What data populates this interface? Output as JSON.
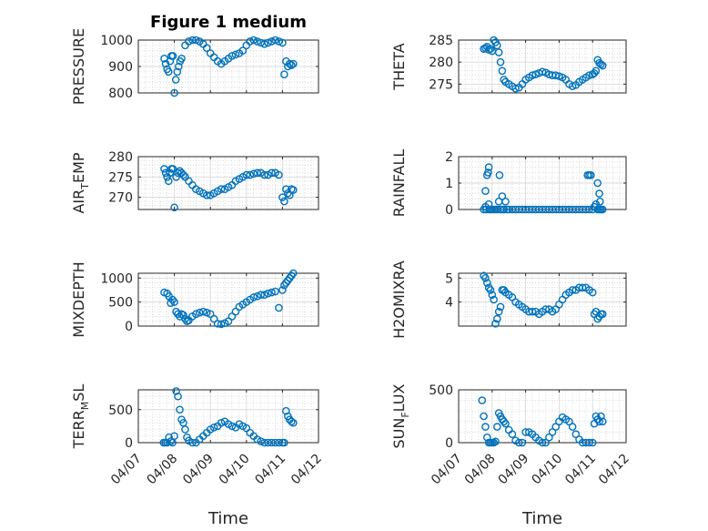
{
  "figure": {
    "title": "Figure 1 medium",
    "marker_color": "#0072BD"
  },
  "chart_data": [
    {
      "type": "scatter",
      "ylabel": "PRESSURE",
      "xlabel": "",
      "ylim": [
        800,
        1000
      ],
      "yticks": [
        800,
        900,
        1000
      ],
      "ytick_labels": [
        "800",
        "900",
        "1000"
      ],
      "xlim": [
        0,
        5
      ],
      "xticks": [
        0,
        1,
        2,
        3,
        4,
        5
      ],
      "xtick_labels": [
        "04/07",
        "04/08",
        "04/09",
        "04/10",
        "04/11",
        "04/12"
      ],
      "grid": true,
      "series": [
        {
          "x": [
            0.72,
            0.76,
            0.8,
            0.84,
            0.88,
            0.92,
            0.96,
            1.0,
            1.04,
            1.08,
            1.12,
            1.16,
            1.2,
            1.3,
            1.4,
            1.5,
            1.6,
            1.7,
            1.8,
            1.9,
            2.0,
            2.1,
            2.2,
            2.3,
            2.4,
            2.5,
            2.6,
            2.7,
            2.8,
            2.9,
            3.0,
            3.1,
            3.2,
            3.3,
            3.4,
            3.5,
            3.6,
            3.7,
            3.8,
            3.9,
            4.0,
            4.05,
            4.1,
            4.15,
            4.2,
            4.25,
            4.3
          ],
          "y": [
            930,
            910,
            890,
            880,
            920,
            940,
            940,
            800,
            850,
            880,
            900,
            920,
            930,
            980,
            995,
            1000,
            1000,
            995,
            985,
            970,
            950,
            935,
            920,
            910,
            920,
            930,
            940,
            945,
            950,
            960,
            980,
            995,
            1000,
            995,
            990,
            985,
            990,
            995,
            1000,
            995,
            990,
            870,
            920,
            900,
            910,
            905,
            910
          ]
        }
      ]
    },
    {
      "type": "scatter",
      "ylabel": "THETA",
      "xlabel": "",
      "ylim": [
        273,
        285
      ],
      "yticks": [
        275,
        280,
        285
      ],
      "ytick_labels": [
        "275",
        "280",
        "285"
      ],
      "xlim": [
        0,
        5
      ],
      "xticks": [
        0,
        1,
        2,
        3,
        4,
        5
      ],
      "xtick_labels": [
        "04/07",
        "04/08",
        "04/09",
        "04/10",
        "04/11",
        "04/12"
      ],
      "grid": true,
      "series": [
        {
          "x": [
            0.75,
            0.8,
            0.85,
            0.9,
            0.95,
            1.0,
            1.05,
            1.1,
            1.15,
            1.2,
            1.25,
            1.3,
            1.35,
            1.4,
            1.5,
            1.6,
            1.7,
            1.8,
            1.9,
            2.0,
            2.1,
            2.2,
            2.3,
            2.4,
            2.5,
            2.6,
            2.7,
            2.8,
            2.9,
            3.0,
            3.1,
            3.2,
            3.3,
            3.4,
            3.5,
            3.6,
            3.7,
            3.8,
            3.9,
            4.0,
            4.05,
            4.1,
            4.15,
            4.2,
            4.25,
            4.3
          ],
          "y": [
            283,
            283.2,
            283.5,
            282.8,
            283,
            282.5,
            285,
            284.5,
            283.8,
            282.2,
            280,
            278,
            276,
            275.5,
            275,
            274.5,
            274,
            274.2,
            275,
            276,
            276.5,
            277,
            277.2,
            277.5,
            277.8,
            277.6,
            277.2,
            277,
            277,
            276.8,
            276.5,
            276,
            275,
            274.5,
            274.8,
            275.5,
            276,
            276.5,
            277,
            277.2,
            277.5,
            278,
            280.5,
            279.8,
            279.5,
            279.2
          ]
        }
      ]
    },
    {
      "type": "scatter",
      "ylabel": "AIR_TEMP",
      "ylabel_main": "AIR",
      "ylabel_sub": "T",
      "ylabel_rest": "EMP",
      "xlabel": "",
      "ylim": [
        267,
        280
      ],
      "yticks": [
        270,
        275,
        280
      ],
      "ytick_labels": [
        "270",
        "275",
        "280"
      ],
      "xlim": [
        0,
        5
      ],
      "xticks": [
        0,
        1,
        2,
        3,
        4,
        5
      ],
      "xtick_labels": [
        "04/07",
        "04/08",
        "04/09",
        "04/10",
        "04/11",
        "04/12"
      ],
      "grid": true,
      "series": [
        {
          "x": [
            0.72,
            0.76,
            0.8,
            0.84,
            0.88,
            0.92,
            0.96,
            1.0,
            1.05,
            1.1,
            1.15,
            1.2,
            1.25,
            1.3,
            1.4,
            1.5,
            1.6,
            1.7,
            1.8,
            1.9,
            2.0,
            2.1,
            2.2,
            2.3,
            2.4,
            2.5,
            2.6,
            2.7,
            2.8,
            2.9,
            3.0,
            3.1,
            3.2,
            3.3,
            3.4,
            3.5,
            3.6,
            3.7,
            3.8,
            3.9,
            4.0,
            4.05,
            4.1,
            4.15,
            4.2,
            4.25,
            4.3
          ],
          "y": [
            277,
            276,
            275,
            274,
            276,
            277,
            277,
            267.5,
            275,
            276,
            276.5,
            276,
            275.5,
            275,
            274,
            273,
            272,
            271.5,
            271,
            270.5,
            270.5,
            271,
            271.5,
            272,
            272,
            272.5,
            273,
            274,
            274.5,
            275,
            275.5,
            275.5,
            275.8,
            276,
            276,
            275.5,
            275.5,
            276,
            276,
            275.5,
            270,
            269,
            272,
            271,
            270.5,
            272,
            271.8
          ]
        }
      ]
    },
    {
      "type": "scatter",
      "ylabel": "RAINFALL",
      "xlabel": "",
      "ylim": [
        0,
        2
      ],
      "yticks": [
        0,
        1,
        2
      ],
      "ytick_labels": [
        "0",
        "1",
        "2"
      ],
      "xlim": [
        0,
        5
      ],
      "xticks": [
        0,
        1,
        2,
        3,
        4,
        5
      ],
      "xtick_labels": [
        "04/07",
        "04/08",
        "04/09",
        "04/10",
        "04/11",
        "04/12"
      ],
      "grid": true,
      "series": [
        {
          "x": [
            0.75,
            0.8,
            0.85,
            0.9,
            0.95,
            1.0,
            1.05,
            1.1,
            1.15,
            1.2,
            1.25,
            1.3,
            1.35,
            1.4,
            1.5,
            1.6,
            1.7,
            1.8,
            1.9,
            2.0,
            2.1,
            2.2,
            2.3,
            2.4,
            2.5,
            2.6,
            2.7,
            2.8,
            2.9,
            3.0,
            3.1,
            3.2,
            3.3,
            3.4,
            3.5,
            3.6,
            3.7,
            3.8,
            3.9,
            4.0,
            4.05,
            4.1,
            4.15,
            4.2,
            4.25,
            4.3,
            0.82,
            0.88,
            0.92,
            1.22,
            1.26,
            1.35,
            1.45,
            3.85,
            3.9,
            3.95,
            4.15,
            4.2,
            4.22,
            4.25,
            0.8,
            0.9
          ],
          "y": [
            0,
            0.7,
            1.3,
            1.6,
            0,
            0,
            0,
            0,
            0,
            0.3,
            0,
            0.5,
            0,
            0.3,
            0,
            0,
            0,
            0,
            0,
            0,
            0,
            0,
            0,
            0,
            0,
            0,
            0,
            0,
            0,
            0,
            0,
            0,
            0,
            0,
            0,
            0,
            0,
            0,
            0,
            0,
            0.1,
            0.2,
            0,
            0,
            0,
            0,
            0,
            1.4,
            0,
            1.3,
            0,
            0,
            0,
            1.3,
            1.3,
            1.3,
            1.0,
            0.6,
            0.3,
            0,
            0.1,
            0.2
          ]
        }
      ]
    },
    {
      "type": "scatter",
      "ylabel": "MIXDEPTH",
      "xlabel": "",
      "ylim": [
        0,
        1100
      ],
      "yticks": [
        0,
        500,
        1000
      ],
      "ytick_labels": [
        "0",
        "500",
        "1000"
      ],
      "xlim": [
        0,
        5
      ],
      "xticks": [
        0,
        1,
        2,
        3,
        4,
        5
      ],
      "xtick_labels": [
        "04/07",
        "04/08",
        "04/09",
        "04/10",
        "04/11",
        "04/12"
      ],
      "grid": true,
      "series": [
        {
          "x": [
            0.72,
            0.8,
            0.85,
            0.9,
            0.95,
            1.0,
            1.05,
            1.1,
            1.15,
            1.2,
            1.25,
            1.3,
            1.35,
            1.4,
            1.5,
            1.6,
            1.7,
            1.8,
            1.9,
            2.0,
            2.1,
            2.2,
            2.3,
            2.4,
            2.5,
            2.6,
            2.7,
            2.8,
            2.9,
            3.0,
            3.1,
            3.2,
            3.3,
            3.4,
            3.5,
            3.6,
            3.7,
            3.8,
            3.9,
            4.0,
            4.05,
            4.1,
            4.15,
            4.2,
            4.25,
            4.3
          ],
          "y": [
            700,
            680,
            620,
            480,
            550,
            500,
            300,
            250,
            200,
            250,
            230,
            150,
            100,
            120,
            200,
            250,
            280,
            300,
            280,
            250,
            150,
            50,
            40,
            60,
            100,
            200,
            300,
            400,
            450,
            500,
            550,
            600,
            620,
            650,
            650,
            680,
            700,
            720,
            380,
            750,
            850,
            900,
            950,
            1000,
            1050,
            1100
          ]
        }
      ]
    },
    {
      "type": "scatter",
      "ylabel": "H2OMIXRA",
      "xlabel": "",
      "ylim": [
        3,
        5.2
      ],
      "yticks": [
        4,
        5
      ],
      "ytick_labels": [
        "4",
        "5"
      ],
      "xlim": [
        0,
        5
      ],
      "xticks": [
        0,
        1,
        2,
        3,
        4,
        5
      ],
      "xtick_labels": [
        "04/07",
        "04/08",
        "04/09",
        "04/10",
        "04/11",
        "04/12"
      ],
      "grid": true,
      "series": [
        {
          "x": [
            0.75,
            0.8,
            0.85,
            0.9,
            0.95,
            1.0,
            1.05,
            1.1,
            1.15,
            1.2,
            1.25,
            1.3,
            1.35,
            1.4,
            1.5,
            1.6,
            1.7,
            1.8,
            1.9,
            2.0,
            2.1,
            2.2,
            2.3,
            2.4,
            2.5,
            2.6,
            2.7,
            2.8,
            2.9,
            3.0,
            3.1,
            3.2,
            3.3,
            3.4,
            3.5,
            3.6,
            3.7,
            3.8,
            3.9,
            4.0,
            4.05,
            4.1,
            4.15,
            4.2,
            4.25,
            4.3
          ],
          "y": [
            5.1,
            5.0,
            4.8,
            4.6,
            4.5,
            4.3,
            4.1,
            3.1,
            3.3,
            3.6,
            3.8,
            4.5,
            4.5,
            4.4,
            4.3,
            4.2,
            4.0,
            3.9,
            3.8,
            3.7,
            3.6,
            3.6,
            3.6,
            3.5,
            3.6,
            3.7,
            3.7,
            3.6,
            3.7,
            3.9,
            4.1,
            4.3,
            4.4,
            4.5,
            4.5,
            4.6,
            4.6,
            4.6,
            4.5,
            4.4,
            3.5,
            3.6,
            3.3,
            3.4,
            3.5,
            3.5
          ]
        }
      ]
    },
    {
      "type": "scatter",
      "ylabel": "TERR_MSL",
      "ylabel_main": "TERR",
      "ylabel_sub": "M",
      "ylabel_rest": "SL",
      "xlabel": "Time",
      "ylim": [
        0,
        800
      ],
      "yticks": [
        0,
        500
      ],
      "ytick_labels": [
        "0",
        "500"
      ],
      "xlim": [
        0,
        5
      ],
      "xticks": [
        0,
        1,
        2,
        3,
        4,
        5
      ],
      "xtick_labels": [
        "04/07",
        "04/08",
        "04/09",
        "04/10",
        "04/11",
        "04/12"
      ],
      "grid": true,
      "series": [
        {
          "x": [
            0.7,
            0.75,
            0.8,
            0.85,
            0.9,
            0.95,
            1.0,
            1.05,
            1.1,
            1.15,
            1.2,
            1.25,
            1.3,
            1.35,
            1.4,
            1.5,
            1.6,
            1.7,
            1.8,
            1.9,
            2.0,
            2.1,
            2.2,
            2.3,
            2.4,
            2.5,
            2.6,
            2.7,
            2.8,
            2.9,
            3.0,
            3.1,
            3.2,
            3.3,
            3.4,
            3.5,
            3.6,
            3.7,
            3.8,
            3.9,
            4.0,
            4.05,
            4.1,
            4.15,
            4.2,
            4.25,
            4.3
          ],
          "y": [
            0,
            0,
            0,
            80,
            20,
            0,
            100,
            780,
            700,
            500,
            350,
            300,
            200,
            80,
            30,
            0,
            0,
            50,
            100,
            150,
            200,
            230,
            250,
            300,
            320,
            280,
            250,
            230,
            280,
            250,
            220,
            150,
            100,
            50,
            20,
            0,
            0,
            0,
            0,
            0,
            0,
            0,
            480,
            400,
            350,
            320,
            300
          ]
        }
      ]
    },
    {
      "type": "scatter",
      "ylabel": "SUN_FLUX",
      "ylabel_main": "SUN",
      "ylabel_sub": "F",
      "ylabel_rest": "LUX",
      "xlabel": "Time",
      "ylim": [
        0,
        500
      ],
      "yticks": [
        0,
        500
      ],
      "ytick_labels": [
        "0",
        "500"
      ],
      "xlim": [
        0,
        5
      ],
      "xticks": [
        0,
        1,
        2,
        3,
        4,
        5
      ],
      "xtick_labels": [
        "04/07",
        "04/08",
        "04/09",
        "04/10",
        "04/11",
        "04/12"
      ],
      "grid": true,
      "series": [
        {
          "x": [
            0.7,
            0.75,
            0.8,
            0.85,
            0.9,
            0.95,
            1.0,
            1.05,
            1.1,
            1.15,
            1.2,
            1.25,
            1.3,
            1.35,
            1.4,
            1.5,
            1.6,
            1.7,
            1.8,
            1.9,
            2.0,
            2.1,
            2.2,
            2.3,
            2.4,
            2.5,
            2.6,
            2.7,
            2.8,
            2.9,
            3.0,
            3.1,
            3.2,
            3.3,
            3.4,
            3.5,
            3.6,
            3.7,
            3.8,
            3.9,
            4.0,
            4.05,
            4.1,
            4.15,
            4.2,
            4.25,
            4.3
          ],
          "y": [
            400,
            250,
            150,
            50,
            0,
            0,
            0,
            0,
            10,
            150,
            280,
            250,
            220,
            200,
            180,
            120,
            80,
            20,
            0,
            0,
            100,
            100,
            80,
            50,
            20,
            0,
            0,
            50,
            100,
            150,
            200,
            240,
            220,
            200,
            150,
            80,
            30,
            0,
            0,
            0,
            0,
            180,
            250,
            220,
            200,
            250,
            200
          ]
        }
      ]
    }
  ]
}
